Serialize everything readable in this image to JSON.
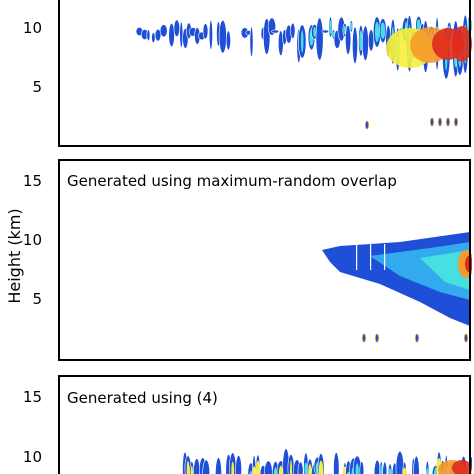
{
  "figure": {
    "ylabel": "Height (km)"
  },
  "chart_data": [
    {
      "type": "heatmap",
      "title": "",
      "ylabel": "Height (km)",
      "ylim": [
        0,
        16
      ],
      "yticks": [
        5,
        10
      ],
      "yticklabels": [
        "5",
        "10"
      ],
      "colors": [
        "#1f4fd6",
        "#33aaee",
        "#46e0e0",
        "#f6ee3a",
        "#f59a2a",
        "#e02b1c"
      ],
      "description_values": {
        "cloud_layer_km": [
          6,
          11
        ],
        "low_cloud_km": [
          1.5,
          2.2
        ]
      }
    },
    {
      "type": "heatmap",
      "title": "Generated using maximum-random overlap",
      "ylabel": "Height (km)",
      "ylim": [
        0,
        16
      ],
      "yticks": [
        5,
        10,
        15
      ],
      "yticklabels": [
        "5",
        "10",
        "15"
      ],
      "colors": [
        "#1f4fd6",
        "#33aaee",
        "#46e0e0",
        "#f6ee3a",
        "#f59a2a",
        "#e02b1c"
      ],
      "description_values": {
        "cloud_layer_km": [
          5.5,
          10.5
        ],
        "low_cloud_km": [
          1.5,
          2.2
        ]
      }
    },
    {
      "type": "heatmap",
      "title": "Generated using (4)",
      "ylabel": "Height (km)",
      "ylim": [
        0,
        16
      ],
      "yticks": [
        10,
        15
      ],
      "yticklabels": [
        "10",
        "15"
      ],
      "colors": [
        "#1f4fd6",
        "#33aaee",
        "#46e0e0",
        "#f6ee3a",
        "#f59a2a",
        "#e02b1c"
      ],
      "description_values": {
        "cloud_layer_km": [
          8,
          11
        ]
      }
    }
  ]
}
